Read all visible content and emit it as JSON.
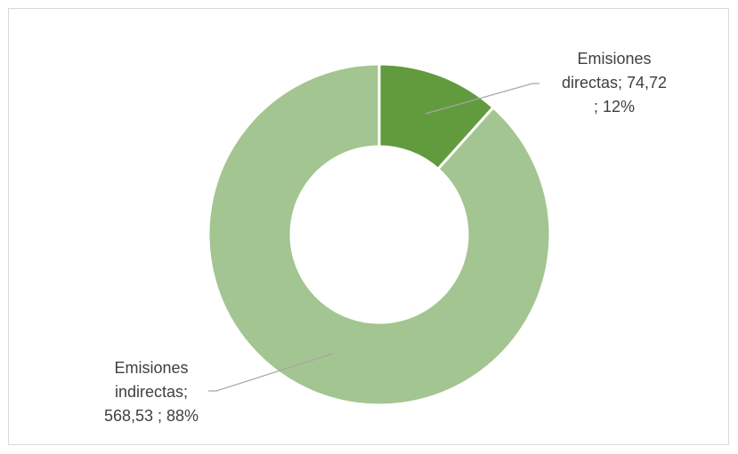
{
  "chart_data": {
    "type": "pie",
    "variant": "doughnut",
    "title": "",
    "slices": [
      {
        "name": "Emisiones directas",
        "value": 74.72,
        "percent": 12,
        "color": "#629b3e",
        "label_lines": [
          "Emisiones",
          "directas;  74,72",
          "; 12%"
        ]
      },
      {
        "name": "Emisiones indirectas",
        "value": 568.53,
        "percent": 88,
        "color": "#a3c591",
        "label_lines": [
          "Emisiones",
          "indirectas;",
          "568,53 ; 88%"
        ]
      }
    ],
    "legend": "none",
    "label_leader_color": "#a6a6a6"
  }
}
